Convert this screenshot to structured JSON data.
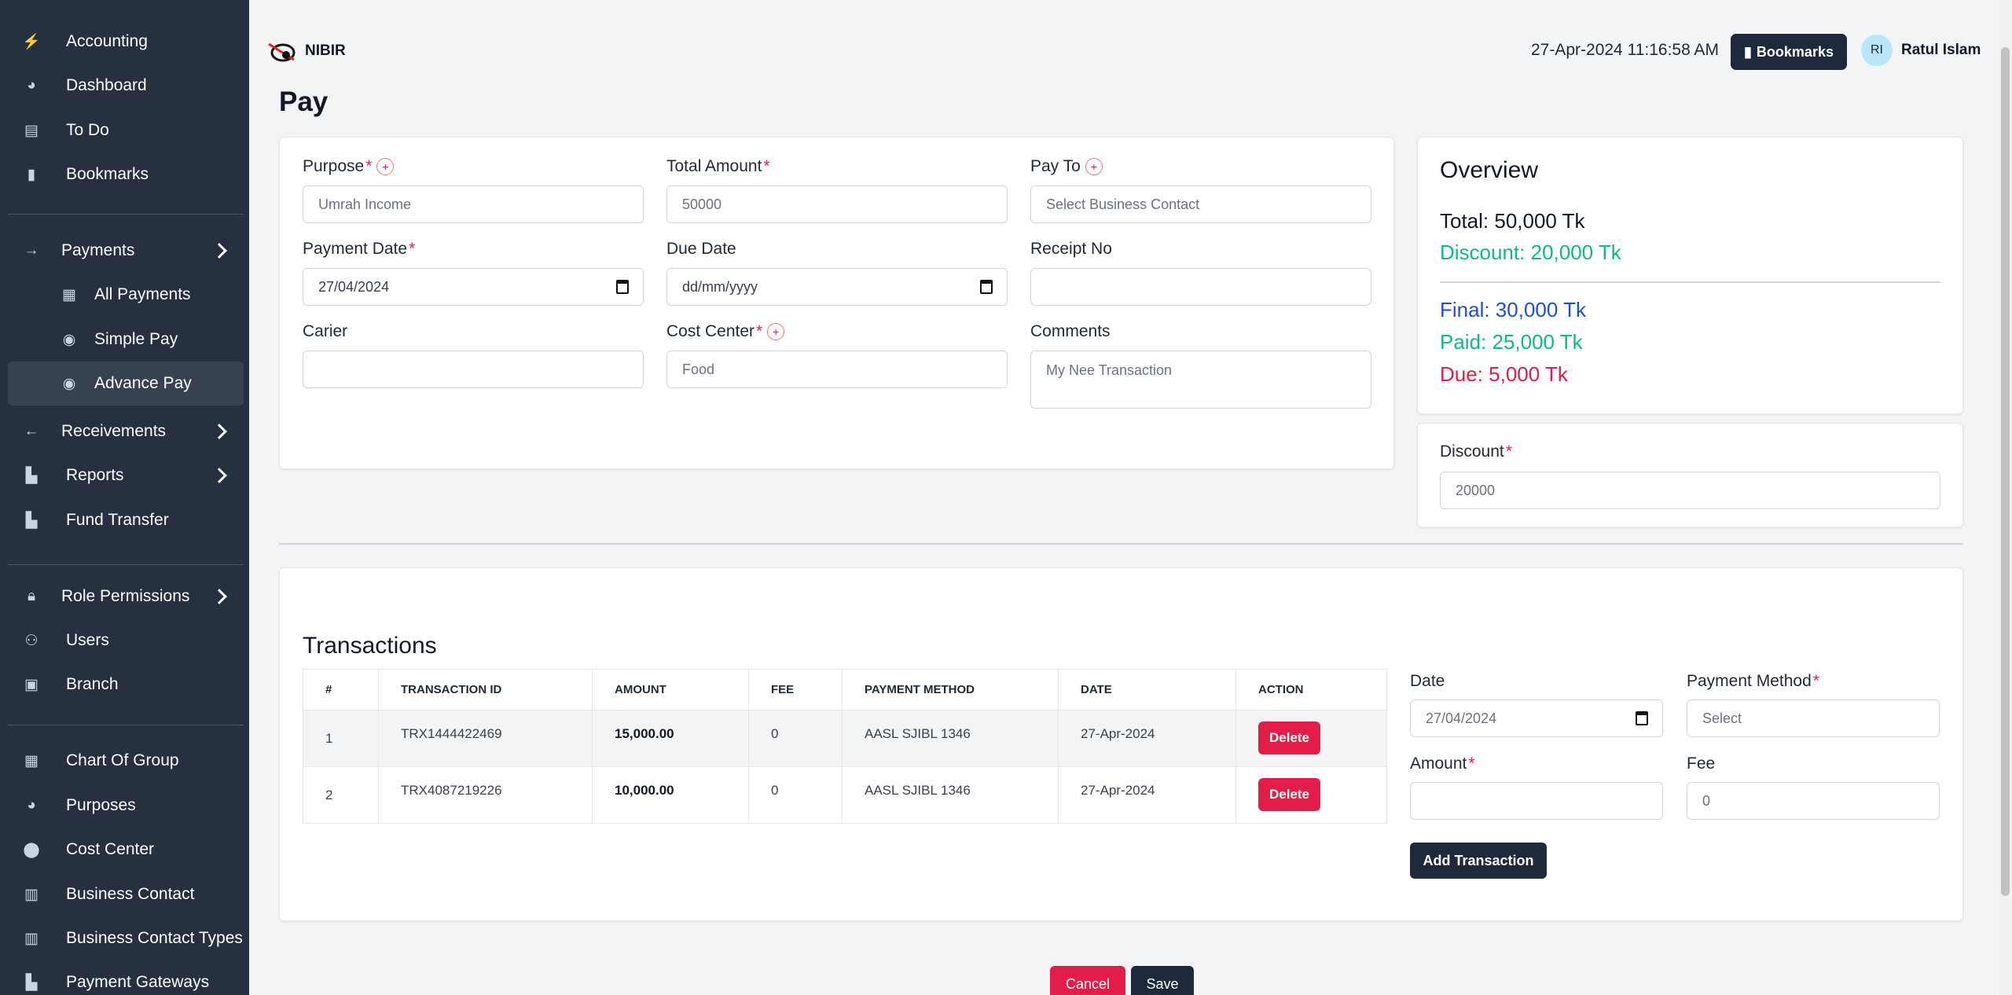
{
  "sidebar": {
    "items": [
      {
        "label": "Accounting",
        "icon": "bolt-icon"
      },
      {
        "label": "Dashboard",
        "icon": "pie-chart-icon"
      },
      {
        "label": "To Do",
        "icon": "table-icon"
      },
      {
        "label": "Bookmarks",
        "icon": "bookmark-icon"
      },
      {
        "label": "Payments",
        "icon": "arrow-right-icon"
      },
      {
        "label": "All Payments",
        "icon": "cash-register-icon"
      },
      {
        "label": "Simple Pay",
        "icon": "user-money-icon"
      },
      {
        "label": "Advance Pay",
        "icon": "user-money-icon"
      },
      {
        "label": "Receivements",
        "icon": "arrow-left-icon"
      },
      {
        "label": "Reports",
        "icon": "layout-icon"
      },
      {
        "label": "Fund Transfer",
        "icon": "layout-icon"
      },
      {
        "label": "Role Permissions",
        "icon": "lock-icon"
      },
      {
        "label": "Users",
        "icon": "users-icon"
      },
      {
        "label": "Branch",
        "icon": "building-icon"
      },
      {
        "label": "Chart Of Group",
        "icon": "grid-icon"
      },
      {
        "label": "Purposes",
        "icon": "pie-chart-icon"
      },
      {
        "label": "Cost Center",
        "icon": "map-pin-icon"
      },
      {
        "label": "Business Contact",
        "icon": "clipboard-icon"
      },
      {
        "label": "Business Contact Types",
        "icon": "clipboard-icon"
      },
      {
        "label": "Payment Gateways",
        "icon": "layout-icon"
      }
    ]
  },
  "header": {
    "brand": "NIBIR",
    "datetime": "27-Apr-2024 11:16:58 AM",
    "bookmarks_label": "Bookmarks",
    "avatar_initials": "RI",
    "user_name": "Ratul Islam"
  },
  "page": {
    "title": "Pay"
  },
  "form": {
    "purpose_label": "Purpose",
    "purpose_placeholder": "Umrah Income",
    "total_amount_label": "Total Amount",
    "total_amount_placeholder": "50000",
    "pay_to_label": "Pay To",
    "pay_to_placeholder": "Select Business Contact",
    "payment_date_label": "Payment Date",
    "payment_date_value": "27/04/2024",
    "due_date_label": "Due Date",
    "due_date_placeholder": "dd/mm/yyyy",
    "receipt_no_label": "Receipt No",
    "receipt_no_value": "",
    "carier_label": "Carier",
    "carier_value": "",
    "cost_center_label": "Cost Center",
    "cost_center_placeholder": "Food",
    "comments_label": "Comments",
    "comments_placeholder": "My Nee Transaction"
  },
  "overview": {
    "title": "Overview",
    "total": "Total: 50,000 Tk",
    "discount": "Discount: 20,000 Tk",
    "final": "Final: 30,000 Tk",
    "paid": "Paid: 25,000 Tk",
    "due": "Due: 5,000 Tk",
    "colors": {
      "total": "#111827",
      "discount": "#10b981",
      "final": "#1d4ed8",
      "paid": "#10b981",
      "due": "#e11d48"
    }
  },
  "discount_box": {
    "label": "Discount",
    "placeholder": "20000"
  },
  "transactions": {
    "title": "Transactions",
    "columns": [
      "#",
      "TRANSACTION ID",
      "AMOUNT",
      "FEE",
      "PAYMENT METHOD",
      "DATE",
      "ACTION"
    ],
    "rows": [
      {
        "n": "1",
        "id": "TRX1444422469",
        "amount": "15,000.00",
        "fee": "0",
        "method": "AASL SJIBL 1346",
        "date": "27-Apr-2024",
        "action": "Delete"
      },
      {
        "n": "2",
        "id": "TRX4087219226",
        "amount": "10,000.00",
        "fee": "0",
        "method": "AASL SJIBL 1346",
        "date": "27-Apr-2024",
        "action": "Delete"
      }
    ],
    "form": {
      "date_label": "Date",
      "date_value": "27/04/2024",
      "payment_method_label": "Payment Method",
      "payment_method_placeholder": "Select",
      "amount_label": "Amount",
      "amount_value": "",
      "fee_label": "Fee",
      "fee_placeholder": "0",
      "add_label": "Add Transaction"
    }
  },
  "actions": {
    "cancel": "Cancel",
    "save": "Save"
  }
}
